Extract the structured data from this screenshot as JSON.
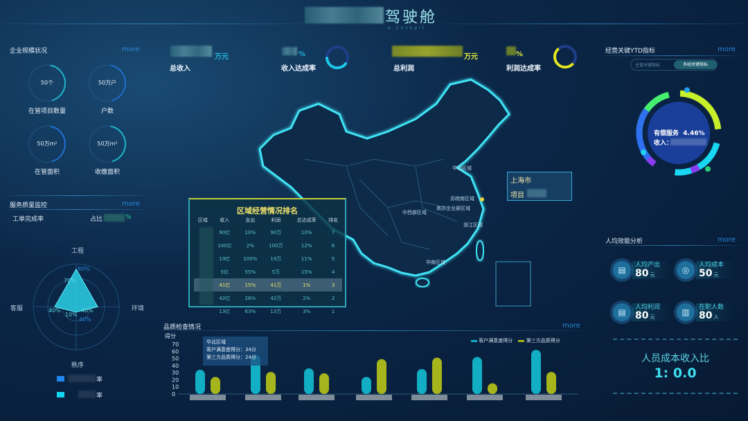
{
  "header": {
    "title": "驾驶舱",
    "subtitle": "e Cockpit"
  },
  "kpis": [
    {
      "label": "总收入",
      "unit": "万元",
      "color": "#1fb8d8"
    },
    {
      "label": "收入达成率",
      "unit": "%",
      "color": "#1fb8d8",
      "ring_color": "#1fc7e8"
    },
    {
      "label": "总利润",
      "unit": "万元",
      "color": "#d8df22"
    },
    {
      "label": "利润达成率",
      "unit": "%",
      "color": "#d8df22",
      "ring_color": "#e2e61c"
    }
  ],
  "left": {
    "scale": {
      "title": "企业规模状况",
      "more": "more",
      "items": [
        {
          "value": "50个",
          "label": "在管项目数量",
          "color": "#1fb5c8"
        },
        {
          "value": "50万户",
          "label": "户数",
          "color": "#1e6fd0"
        },
        {
          "value": "50万m²",
          "label": "在管面积",
          "color": "#1e6fd0"
        },
        {
          "value": "50万m²",
          "label": "收缴面积",
          "color": "#1fb5c8"
        }
      ]
    },
    "service": {
      "title": "服务质量监控",
      "more": "more",
      "completion_label": "工单完成率",
      "ratio_label": "占比",
      "ratio_suffix": "%"
    },
    "radar": {
      "axes": [
        "工程",
        "环境",
        "秩序",
        "客服"
      ],
      "values": [
        70,
        40,
        10,
        40
      ],
      "outer_label": "80%",
      "value_labels": [
        "70%",
        "40%",
        "10%",
        "40%",
        "40%"
      ],
      "legend": [
        {
          "suffix": "率",
          "color": "#1e88f0"
        },
        {
          "suffix": "率",
          "color": "#12d6f0"
        }
      ]
    }
  },
  "map": {
    "region_labels": [
      "华北区域",
      "苏皖南区域",
      "商办企业部区域",
      "中西部区域",
      "浙江区域",
      "华南区域"
    ],
    "popup": {
      "city": "上海市",
      "item_prefix": "项目"
    }
  },
  "ranking": {
    "title": "区域经营情况排名",
    "columns": [
      "区域",
      "收入",
      "支出",
      "利润",
      "总达成率",
      "排名"
    ],
    "rows": [
      [
        "",
        "90亿",
        "10%",
        "90万",
        "10%",
        "7"
      ],
      [
        "",
        "100亿",
        "2%",
        "100万",
        "12%",
        "6"
      ],
      [
        "",
        "19亿",
        "100%",
        "19万",
        "11%",
        "5"
      ],
      [
        "",
        "5亿",
        "55%",
        "5万",
        "15%",
        "4"
      ],
      [
        "",
        "41亿",
        "15%",
        "41万",
        "1%",
        "3"
      ],
      [
        "",
        "42亿",
        "26%",
        "42万",
        "2%",
        "2"
      ],
      [
        "",
        "13亿",
        "63%",
        "13万",
        "3%",
        "1"
      ]
    ],
    "highlighted_row": 4
  },
  "quality": {
    "title": "品质检查情况",
    "more": "more",
    "tooltip": {
      "region": "华北区域",
      "line1": "客户满意度得分：34分",
      "line2": "第三方品质得分：24分"
    }
  },
  "chart_data": {
    "type": "bar",
    "ylabel": "得分",
    "ylim": [
      0,
      70
    ],
    "yticks": [
      0,
      10,
      20,
      30,
      40,
      50,
      60,
      70
    ],
    "legend_position": "top-right",
    "series": [
      {
        "name": "客户满意度得分",
        "color": "#12aec4",
        "values": [
          34,
          55,
          36,
          24,
          35,
          52,
          62
        ]
      },
      {
        "name": "第三方品质得分",
        "color": "#a7b51c",
        "values": [
          24,
          31,
          29,
          49,
          51,
          15,
          31
        ]
      }
    ]
  },
  "right": {
    "ytd": {
      "title": "经营关键YTD指标",
      "more": "more",
      "tabs": [
        "主营关键指标",
        "多经关键指标"
      ],
      "active_tab": 1,
      "donut_label": "有偿服务",
      "donut_pct": "4.46%",
      "income_label": "收入："
    },
    "efficiency": {
      "title": "人均效能分析",
      "more": "more",
      "cards": [
        {
          "label": "人均产出",
          "value": "80",
          "unit": "元",
          "icon": "document-chart-icon"
        },
        {
          "label": "人均成本",
          "value": "50",
          "unit": "元",
          "icon": "coins-icon"
        },
        {
          "label": "人均利润",
          "value": "80",
          "unit": "元",
          "icon": "document-chart-icon"
        },
        {
          "label": "在职人数",
          "value": "80",
          "unit": "人",
          "icon": "document-icon"
        }
      ]
    },
    "ratio": {
      "title": "人员成本收入比",
      "value": "1: 0.0"
    }
  }
}
